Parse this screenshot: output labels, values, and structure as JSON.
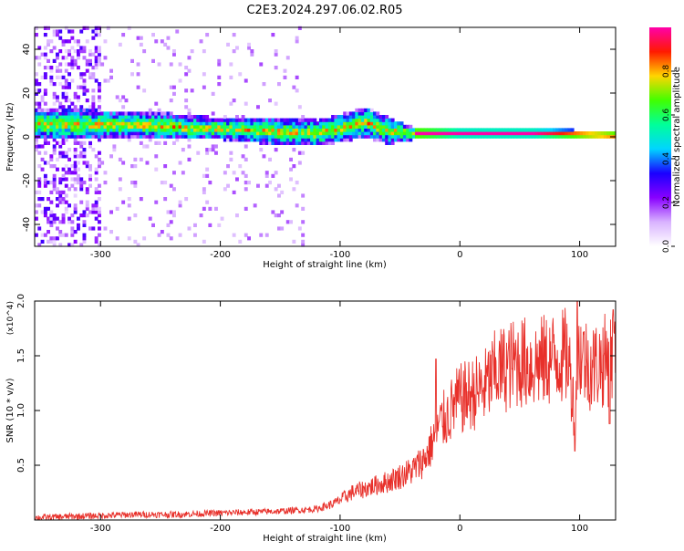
{
  "title": "C2E3.2024.297.06.02.R05",
  "chart_data": [
    {
      "type": "heatmap",
      "xlabel": "Height of straight line (km)",
      "ylabel": "Frequency (Hz)",
      "xlim": [
        -355,
        130
      ],
      "ylim": [
        -50,
        50
      ],
      "xticks": [
        -300,
        -200,
        -100,
        0,
        100
      ],
      "yticks": [
        -40,
        -20,
        0,
        20,
        40
      ],
      "grid": false,
      "colorbar": {
        "label": "Normalized spectral amplitude",
        "range": [
          0,
          1
        ],
        "ticks": [
          "0.0",
          "0.2",
          "0.4",
          "0.6",
          "0.8"
        ],
        "colors": [
          "#ffffff",
          "#d9b3ff",
          "#8800ff",
          "#1a00ff",
          "#00d5ff",
          "#00ff9a",
          "#41ff00",
          "#ffd500",
          "#ff1a00",
          "#ff00aa"
        ]
      },
      "noise_band": {
        "x_range": [
          -355,
          -300
        ],
        "level": 0.25
      },
      "signal_ridge": [
        {
          "x": -320,
          "center": 5,
          "width": 7
        },
        {
          "x": -280,
          "center": 5,
          "width": 6
        },
        {
          "x": -240,
          "center": 4,
          "width": 6
        },
        {
          "x": -200,
          "center": 3,
          "width": 5
        },
        {
          "x": -160,
          "center": 2,
          "width": 6
        },
        {
          "x": -120,
          "center": 1,
          "width": 6
        },
        {
          "x": -80,
          "center": 6,
          "width": 7
        },
        {
          "x": -60,
          "center": 2,
          "width": 6
        },
        {
          "x": -40,
          "center": 1,
          "width": 3
        },
        {
          "x": 0,
          "center": 1,
          "width": 2
        },
        {
          "x": 60,
          "center": 1,
          "width": 2
        },
        {
          "x": 130,
          "center": 0,
          "width": 2
        }
      ]
    },
    {
      "type": "line",
      "xlabel": "Height of straight line (km)",
      "ylabel": "SNR (10 * v/v)",
      "multiplier": "(x10^4)",
      "xlim": [
        -355,
        130
      ],
      "ylim": [
        0,
        2.0
      ],
      "xticks": [
        -300,
        -200,
        -100,
        0,
        100
      ],
      "yticks": [
        "0.5",
        "1.0",
        "1.5",
        "2.0"
      ],
      "grid": false,
      "series": [
        {
          "color": "#e8302a",
          "x": [
            -355,
            -330,
            -300,
            -270,
            -240,
            -210,
            -180,
            -150,
            -120,
            -105,
            -90,
            -75,
            -60,
            -50,
            -40,
            -30,
            -25,
            -20,
            -15,
            -10,
            -5,
            0,
            10,
            20,
            30,
            40,
            50,
            60,
            70,
            80,
            90,
            95,
            100,
            105,
            110,
            120,
            130
          ],
          "y": [
            0.02,
            0.03,
            0.04,
            0.05,
            0.05,
            0.06,
            0.07,
            0.08,
            0.1,
            0.15,
            0.25,
            0.3,
            0.35,
            0.4,
            0.45,
            0.55,
            0.65,
            0.8,
            0.9,
            0.95,
            1.05,
            1.1,
            1.15,
            1.2,
            1.35,
            1.4,
            1.45,
            1.42,
            1.45,
            1.48,
            1.5,
            1.1,
            1.55,
            1.45,
            1.4,
            1.45,
            1.5
          ],
          "noise": 0.3,
          "spikes": [
            {
              "x": -20,
              "y": 1.47
            },
            {
              "x": 98,
              "y": 2.0
            },
            {
              "x": 96,
              "y": 0.63
            },
            {
              "x": 128,
              "y": 1.92
            },
            {
              "x": 125,
              "y": 0.88
            }
          ]
        }
      ]
    }
  ]
}
